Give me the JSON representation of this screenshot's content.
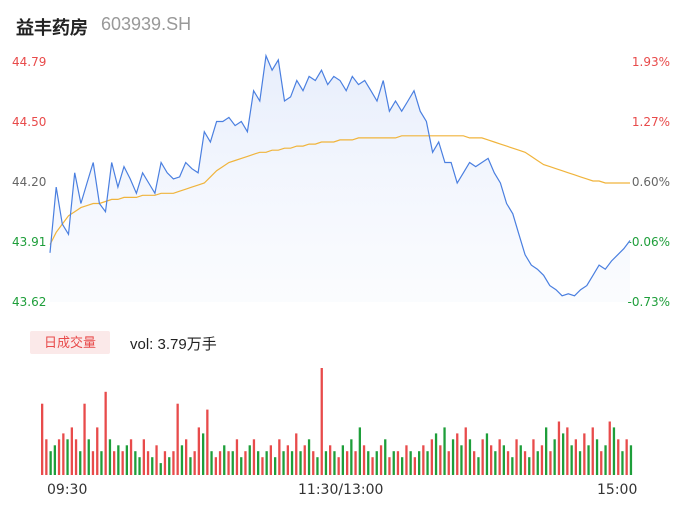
{
  "header": {
    "name": "益丰药房",
    "code": "603939.SH"
  },
  "chart_data": [
    {
      "type": "line",
      "y_left_ticks": [
        "44.79",
        "44.50",
        "44.20",
        "43.91",
        "43.62"
      ],
      "y_right_ticks": [
        "1.93%",
        "1.27%",
        "0.60%",
        "-0.06%",
        "-0.73%"
      ],
      "ylim": [
        43.62,
        44.79
      ],
      "x_ticks": [
        "09:30",
        "11:30/13:00",
        "15:00"
      ],
      "colors": {
        "price": "#4a7fe0",
        "avg": "#f0b43c",
        "up": "#e84b4b",
        "down": "#1e9e3a",
        "mid": "#666666"
      },
      "series": [
        {
          "values": [
            43.86,
            44.18,
            44.0,
            43.95,
            44.25,
            44.1,
            44.2,
            44.3,
            44.1,
            44.06,
            44.3,
            44.18,
            44.28,
            44.22,
            44.15,
            44.25,
            44.2,
            44.15,
            44.3,
            44.25,
            44.22,
            44.23,
            44.3,
            44.27,
            44.25,
            44.45,
            44.4,
            44.5,
            44.5,
            44.52,
            44.48,
            44.5,
            44.45,
            44.65,
            44.6,
            44.82,
            44.75,
            44.8,
            44.6,
            44.62,
            44.7,
            44.65,
            44.72,
            44.7,
            44.75,
            44.68,
            44.72,
            44.7,
            44.65,
            44.72,
            44.68,
            44.7,
            44.65,
            44.6,
            44.7,
            44.55,
            44.6,
            44.55,
            44.6,
            44.65,
            44.55,
            44.5,
            44.35,
            44.4,
            44.3,
            44.3,
            44.2,
            44.25,
            44.3,
            44.28,
            44.3,
            44.32,
            44.25,
            44.2,
            44.1,
            44.05,
            43.95,
            43.85,
            43.8,
            43.78,
            43.75,
            43.7,
            43.68,
            43.65,
            43.66,
            43.65,
            43.68,
            43.7,
            43.75,
            43.8,
            43.78,
            43.82,
            43.85,
            43.88,
            43.92
          ]
        },
        {
          "values": [
            43.9,
            43.96,
            44.0,
            44.04,
            44.06,
            44.08,
            44.09,
            44.1,
            44.1,
            44.11,
            44.12,
            44.12,
            44.13,
            44.13,
            44.13,
            44.14,
            44.14,
            44.14,
            44.15,
            44.15,
            44.15,
            44.16,
            44.17,
            44.18,
            44.19,
            44.2,
            44.23,
            44.26,
            44.28,
            44.3,
            44.31,
            44.32,
            44.33,
            44.34,
            44.35,
            44.35,
            44.36,
            44.36,
            44.37,
            44.37,
            44.38,
            44.38,
            44.39,
            44.39,
            44.4,
            44.4,
            44.4,
            44.41,
            44.41,
            44.41,
            44.42,
            44.42,
            44.42,
            44.42,
            44.42,
            44.42,
            44.42,
            44.43,
            44.43,
            44.43,
            44.43,
            44.43,
            44.43,
            44.43,
            44.43,
            44.43,
            44.43,
            44.43,
            44.42,
            44.42,
            44.42,
            44.41,
            44.4,
            44.39,
            44.38,
            44.37,
            44.36,
            44.35,
            44.33,
            44.31,
            44.29,
            44.28,
            44.27,
            44.26,
            44.25,
            44.24,
            44.23,
            44.22,
            44.21,
            44.21,
            44.2,
            44.2,
            44.2,
            44.2,
            44.2
          ]
        }
      ]
    },
    {
      "type": "bar",
      "title": "日成交量",
      "summary_label": "vol: 3.79万手",
      "values": [
        60,
        30,
        20,
        25,
        30,
        35,
        30,
        40,
        30,
        20,
        60,
        30,
        20,
        40,
        20,
        70,
        30,
        20,
        25,
        20,
        25,
        30,
        20,
        15,
        30,
        20,
        15,
        25,
        10,
        20,
        15,
        20,
        60,
        25,
        30,
        15,
        20,
        40,
        35,
        55,
        20,
        15,
        20,
        25,
        20,
        20,
        30,
        15,
        20,
        25,
        30,
        20,
        15,
        20,
        25,
        15,
        30,
        20,
        25,
        20,
        35,
        20,
        25,
        30,
        20,
        15,
        90,
        20,
        25,
        20,
        15,
        25,
        20,
        30,
        20,
        40,
        25,
        20,
        15,
        20,
        25,
        30,
        15,
        20,
        20,
        15,
        25,
        20,
        15,
        20,
        25,
        20,
        30,
        35,
        25,
        40,
        20,
        30,
        35,
        25,
        40,
        30,
        20,
        15,
        30,
        35,
        25,
        20,
        30,
        25,
        20,
        15,
        30,
        25,
        20,
        15,
        30,
        20,
        25,
        40,
        20,
        30,
        45,
        35,
        40,
        25,
        30,
        20,
        35,
        25,
        40,
        30,
        20,
        25,
        45,
        40,
        30,
        20,
        30,
        25
      ],
      "dirs": [
        1,
        1,
        -1,
        -1,
        1,
        1,
        -1,
        1,
        1,
        -1,
        1,
        -1,
        1,
        1,
        -1,
        1,
        -1,
        1,
        -1,
        1,
        -1,
        1,
        -1,
        -1,
        1,
        1,
        -1,
        1,
        -1,
        1,
        -1,
        1,
        1,
        -1,
        1,
        -1,
        1,
        1,
        -1,
        1,
        -1,
        1,
        1,
        -1,
        1,
        -1,
        1,
        -1,
        1,
        -1,
        1,
        -1,
        1,
        -1,
        1,
        -1,
        1,
        -1,
        1,
        -1,
        1,
        -1,
        1,
        -1,
        1,
        -1,
        1,
        -1,
        1,
        -1,
        1,
        -1,
        1,
        -1,
        1,
        -1,
        1,
        -1,
        1,
        -1,
        1,
        -1,
        1,
        -1,
        1,
        -1,
        1,
        -1,
        1,
        -1,
        1,
        -1,
        1,
        -1,
        1,
        -1,
        1,
        -1,
        1,
        -1,
        1,
        -1,
        1,
        -1,
        1,
        -1,
        1,
        -1,
        1,
        -1,
        1,
        -1,
        1,
        -1,
        1,
        -1,
        1,
        -1,
        1,
        -1,
        1,
        -1,
        1,
        -1,
        1,
        -1,
        1,
        -1,
        1,
        -1,
        1,
        -1,
        1,
        -1,
        1,
        -1,
        1,
        -1,
        1,
        -1,
        1,
        -1,
        1,
        -1,
        1,
        -1
      ]
    }
  ]
}
